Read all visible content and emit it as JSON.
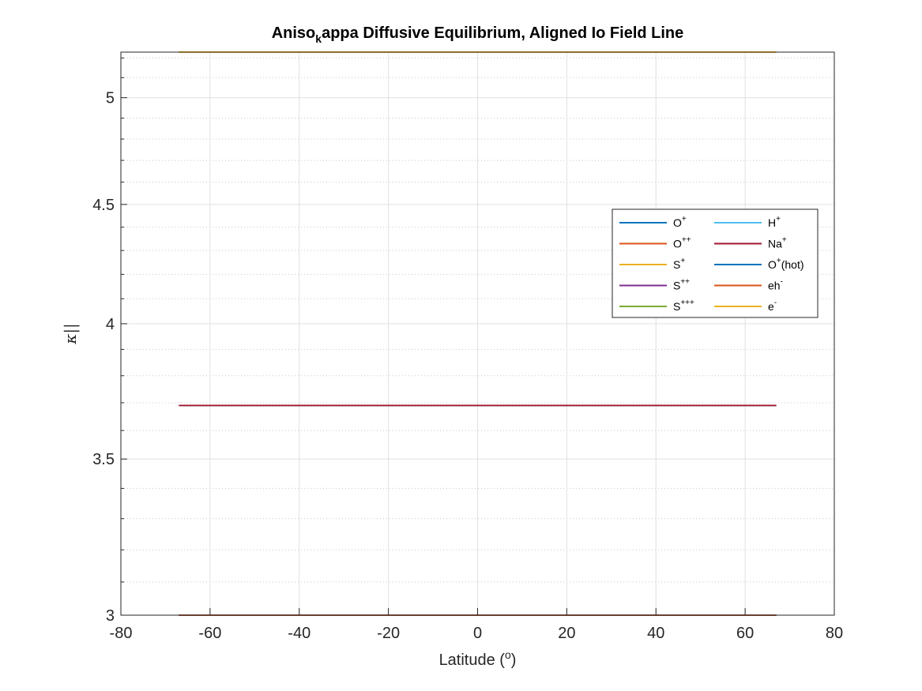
{
  "chart_data": {
    "type": "line",
    "title": {
      "base": "Aniso",
      "subscript": "k",
      "rest": "appa Diffusive Equilibrium, Aligned Io Field Line"
    },
    "xlabel": {
      "base": "Latitude (",
      "superscript": "o",
      "tail": ")"
    },
    "ylabel": "κ||",
    "xlim": [
      -80,
      80
    ],
    "ylim": [
      3,
      5.23
    ],
    "y_scale": "log",
    "xticks": [
      -80,
      -60,
      -40,
      -20,
      0,
      20,
      40,
      60,
      80
    ],
    "xtick_labels": [
      "-80",
      "-60",
      "-40",
      "-20",
      "0",
      "20",
      "40",
      "60",
      "80"
    ],
    "yticks": [
      3,
      3.5,
      4,
      4.5,
      5
    ],
    "ytick_labels": [
      "3",
      "3.5",
      "4",
      "4.5",
      "5"
    ],
    "y_minor_ticks": [
      3.1,
      3.2,
      3.3,
      3.4,
      3.6,
      3.7,
      3.8,
      3.9,
      4.1,
      4.2,
      4.3,
      4.4,
      4.6,
      4.7,
      4.8,
      4.9,
      5.1,
      5.2
    ],
    "grid": true,
    "minor_grid": true,
    "legend_position": "right",
    "legend_columns": 2,
    "series": [
      {
        "name": "O",
        "sup": "+",
        "suffix": "",
        "color": "#0072BD",
        "x": [
          -67,
          67
        ],
        "y": [
          3,
          3
        ]
      },
      {
        "name": "O",
        "sup": "++",
        "suffix": "",
        "color": "#D95319",
        "x": [
          -67,
          67
        ],
        "y": [
          3,
          3
        ]
      },
      {
        "name": "S",
        "sup": "+",
        "suffix": "",
        "color": "#EDB120",
        "x": [
          -67,
          67
        ],
        "y": [
          5.23,
          5.23
        ]
      },
      {
        "name": "S",
        "sup": "++",
        "suffix": "",
        "color": "#7E2F8E",
        "x": [
          -67,
          67
        ],
        "y": [
          3,
          3
        ]
      },
      {
        "name": "S",
        "sup": "+++",
        "suffix": "",
        "color": "#77AC30",
        "x": [
          -67,
          67
        ],
        "y": [
          3,
          3
        ]
      },
      {
        "name": "H",
        "sup": "+",
        "suffix": "",
        "color": "#4DBEEE",
        "x": [
          -67,
          67
        ],
        "y": [
          3.69,
          3.69
        ]
      },
      {
        "name": "Na",
        "sup": "+",
        "suffix": "",
        "color": "#A2142F",
        "x": [
          -67,
          67
        ],
        "y": [
          3.69,
          3.69
        ]
      },
      {
        "name": "O",
        "sup": "+",
        "suffix": "(hot)",
        "color": "#0072BD",
        "x": [
          -67,
          67
        ],
        "y": [
          3,
          3
        ]
      },
      {
        "name": "eh",
        "sup": "-",
        "suffix": "",
        "color": "#D95319",
        "x": [
          -67,
          67
        ],
        "y": [
          3,
          3
        ]
      },
      {
        "name": "e",
        "sup": "-",
        "suffix": "",
        "color": "#EDB120",
        "x": [
          -67,
          67
        ],
        "y": [
          5.23,
          5.23
        ]
      }
    ]
  }
}
